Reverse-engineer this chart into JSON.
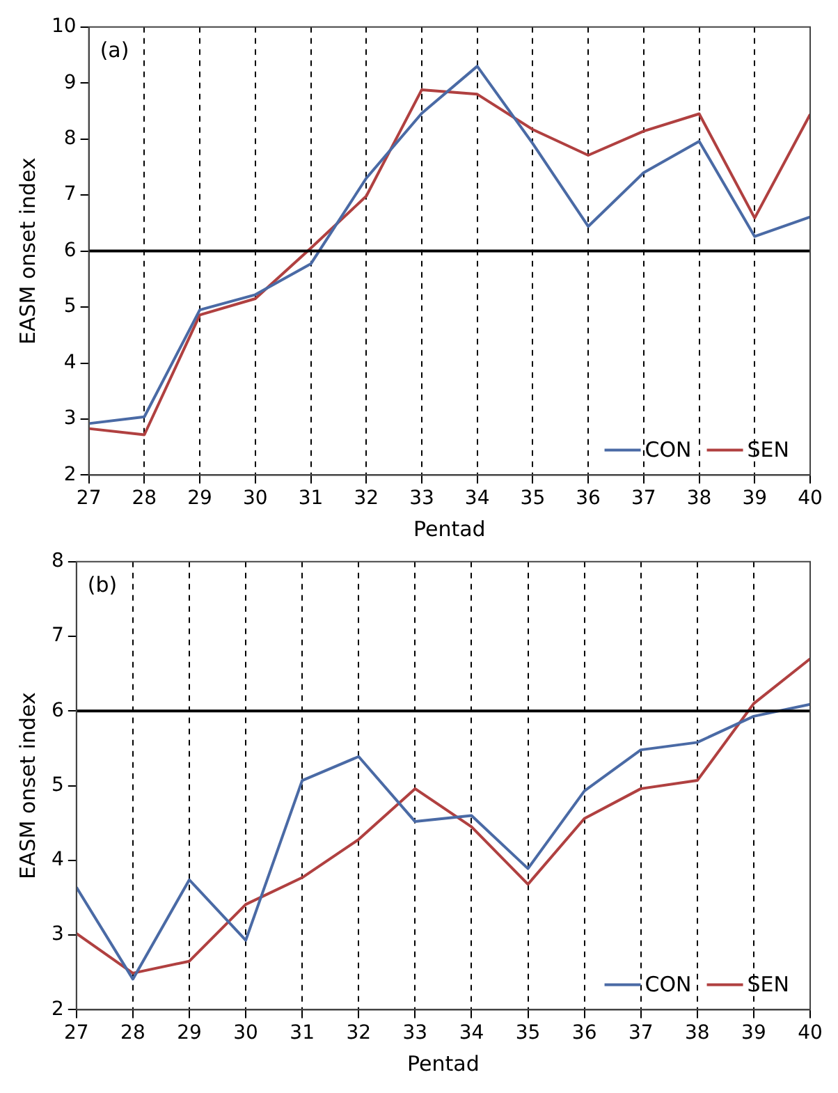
{
  "chart_data": [
    {
      "type": "line",
      "annotations": [
        "(a)"
      ],
      "xlabel": "Pentad",
      "ylabel": "EASM onset index",
      "x": [
        27,
        28,
        29,
        30,
        31,
        32,
        33,
        34,
        35,
        36,
        37,
        38,
        39,
        40
      ],
      "series": [
        {
          "name": "CON",
          "color": "#4a6aa5",
          "values": [
            2.92,
            3.04,
            4.95,
            5.22,
            5.77,
            7.3,
            8.46,
            9.3,
            7.92,
            6.44,
            7.4,
            7.96,
            6.26,
            6.61
          ]
        },
        {
          "name": "SEN",
          "color": "#b04040",
          "values": [
            2.83,
            2.72,
            4.86,
            5.15,
            6.05,
            6.98,
            8.88,
            8.8,
            8.17,
            7.71,
            8.14,
            8.45,
            6.59,
            8.44
          ]
        }
      ],
      "xlim": [
        27,
        40
      ],
      "xticks": [
        27,
        28,
        29,
        30,
        31,
        32,
        33,
        34,
        35,
        36,
        37,
        38,
        39,
        40
      ],
      "ylim": [
        2,
        10
      ],
      "yticks": [
        2,
        3,
        4,
        5,
        6,
        7,
        8,
        9,
        10
      ],
      "ref_lines": [
        {
          "axis": "y",
          "value": 6,
          "color": "#000000"
        }
      ],
      "grid": "x",
      "line_style": "solid",
      "marker": "none",
      "legend": "bottom right"
    },
    {
      "type": "line",
      "annotations": [
        "(b)"
      ],
      "xlabel": "Pentad",
      "ylabel": "EASM onset index",
      "x": [
        27,
        28,
        29,
        30,
        31,
        32,
        33,
        34,
        35,
        36,
        37,
        38,
        39,
        40
      ],
      "series": [
        {
          "name": "CON",
          "color": "#4a6aa5",
          "values": [
            3.64,
            2.41,
            3.74,
            2.93,
            5.07,
            5.39,
            4.52,
            4.6,
            3.89,
            4.93,
            5.48,
            5.58,
            5.93,
            6.09
          ]
        },
        {
          "name": "SEN",
          "color": "#b04040",
          "values": [
            3.02,
            2.49,
            2.65,
            3.41,
            3.77,
            4.28,
            4.96,
            4.45,
            3.68,
            4.56,
            4.96,
            5.07,
            6.1,
            6.7
          ]
        }
      ],
      "xlim": [
        27,
        40
      ],
      "xticks": [
        27,
        28,
        29,
        30,
        31,
        32,
        33,
        34,
        35,
        36,
        37,
        38,
        39,
        40
      ],
      "ylim": [
        2,
        8
      ],
      "yticks": [
        2,
        3,
        4,
        5,
        6,
        7,
        8
      ],
      "ref_lines": [
        {
          "axis": "y",
          "value": 6,
          "color": "#000000"
        }
      ],
      "grid": "x",
      "line_style": "solid",
      "marker": "none",
      "legend": "bottom right"
    }
  ]
}
